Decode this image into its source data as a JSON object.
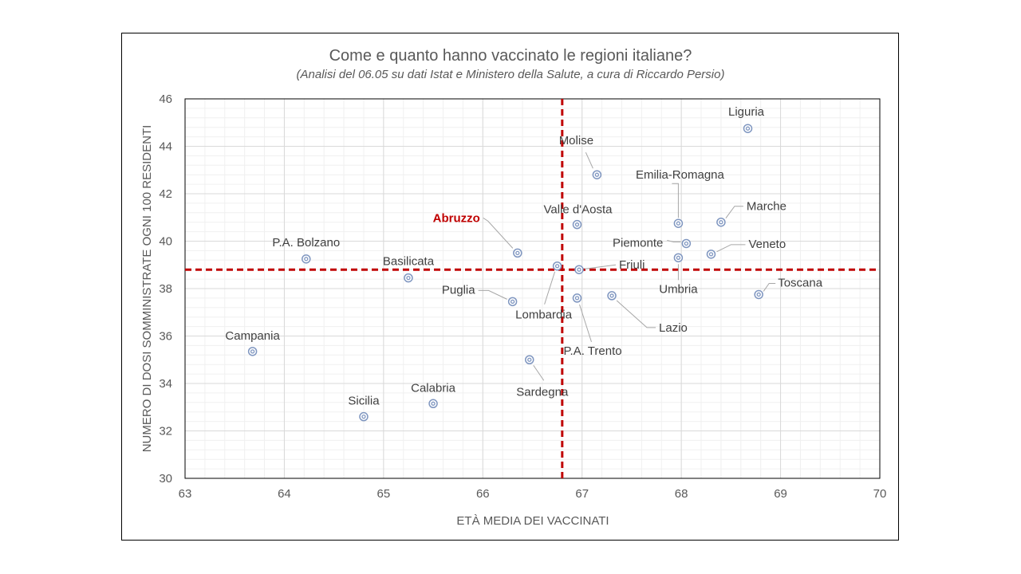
{
  "chart_data": {
    "type": "scatter",
    "title": "Come e quanto hanno vaccinato le regioni italiane?",
    "subtitle": "(Analisi del 06.05 su dati Istat e Ministero della Salute, a cura di Riccardo Persio)",
    "xlabel": "ETÀ MEDIA DEI VACCINATI",
    "ylabel": "NUMERO DI DOSI SOMMINISTRATE OGNI 100 RESIDENTI",
    "xlim": [
      63,
      70
    ],
    "ylim": [
      30,
      46
    ],
    "xticks": [
      "63",
      "64",
      "65",
      "66",
      "67",
      "68",
      "69",
      "70"
    ],
    "yticks": [
      "30",
      "32",
      "34",
      "36",
      "38",
      "40",
      "42",
      "44",
      "46"
    ],
    "reference_lines": {
      "x": 66.8,
      "y": 38.8,
      "color": "#c00000"
    },
    "marker_color": "#7f96c0",
    "highlight_color": "#c00000",
    "points": [
      {
        "name": "Liguria",
        "x": 68.67,
        "y": 44.75
      },
      {
        "name": "Molise",
        "x": 67.15,
        "y": 42.8
      },
      {
        "name": "Emilia-Romagna",
        "x": 67.97,
        "y": 40.75
      },
      {
        "name": "Marche",
        "x": 68.4,
        "y": 40.8
      },
      {
        "name": "Valle d'Aosta",
        "x": 66.95,
        "y": 40.7
      },
      {
        "name": "Abruzzo",
        "x": 66.35,
        "y": 39.5,
        "highlight": true
      },
      {
        "name": "Piemonte",
        "x": 68.05,
        "y": 39.9
      },
      {
        "name": "Veneto",
        "x": 68.3,
        "y": 39.45
      },
      {
        "name": "P.A. Bolzano",
        "x": 64.22,
        "y": 39.25
      },
      {
        "name": "Umbria",
        "x": 67.97,
        "y": 39.3
      },
      {
        "name": "Friuli",
        "x": 66.97,
        "y": 38.8
      },
      {
        "name": "Lombardia",
        "x": 66.75,
        "y": 38.95
      },
      {
        "name": "Basilicata",
        "x": 65.25,
        "y": 38.45
      },
      {
        "name": "Toscana",
        "x": 68.78,
        "y": 37.75
      },
      {
        "name": "Lazio",
        "x": 67.3,
        "y": 37.7
      },
      {
        "name": "P.A. Trento",
        "x": 66.95,
        "y": 37.6
      },
      {
        "name": "Puglia",
        "x": 66.3,
        "y": 37.45
      },
      {
        "name": "Campania",
        "x": 63.68,
        "y": 35.35
      },
      {
        "name": "Sardegna",
        "x": 66.47,
        "y": 35.0
      },
      {
        "name": "Calabria",
        "x": 65.5,
        "y": 33.15
      },
      {
        "name": "Sicilia",
        "x": 64.8,
        "y": 32.6
      }
    ]
  }
}
